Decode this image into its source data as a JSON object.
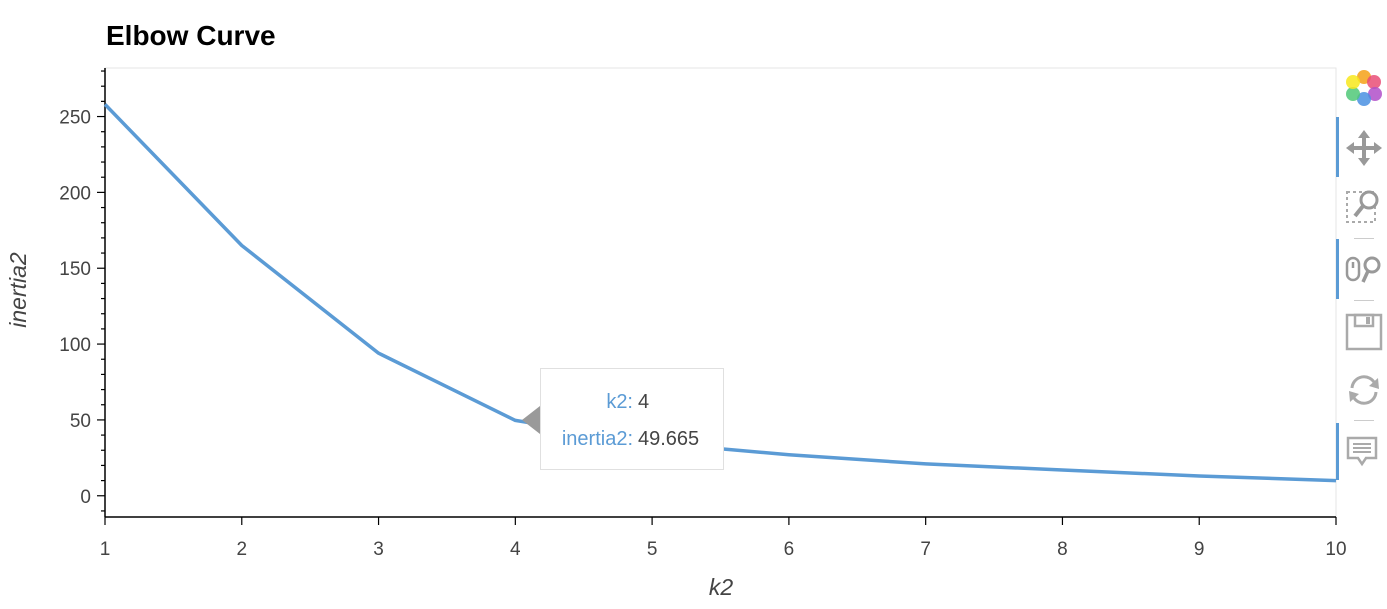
{
  "chart_data": {
    "type": "line",
    "title": "Elbow Curve",
    "xlabel": "k2",
    "ylabel": "inertia2",
    "x": [
      1,
      2,
      3,
      4,
      5,
      6,
      7,
      8,
      9,
      10
    ],
    "series": [
      {
        "values": [
          258,
          165,
          94,
          49.665,
          35,
          27,
          21,
          17,
          13,
          10
        ]
      }
    ],
    "xticks": [
      1,
      2,
      3,
      4,
      5,
      6,
      7,
      8,
      9,
      10
    ],
    "yticks": [
      0,
      50,
      100,
      150,
      200,
      250
    ],
    "xlim": [
      1,
      10
    ],
    "ylim": [
      -14,
      282
    ],
    "line_color": "#5b9bd5",
    "grid": false
  },
  "tooltip": {
    "k_label": "k2:",
    "k_value": "4",
    "inertia_label": "inertia2:",
    "inertia_value": "49.665"
  },
  "toolbar": {
    "tools": [
      "bokeh-logo-icon",
      "pan-icon",
      "box-zoom-icon",
      "wheel-zoom-icon",
      "save-icon",
      "reset-icon",
      "hover-icon"
    ]
  }
}
